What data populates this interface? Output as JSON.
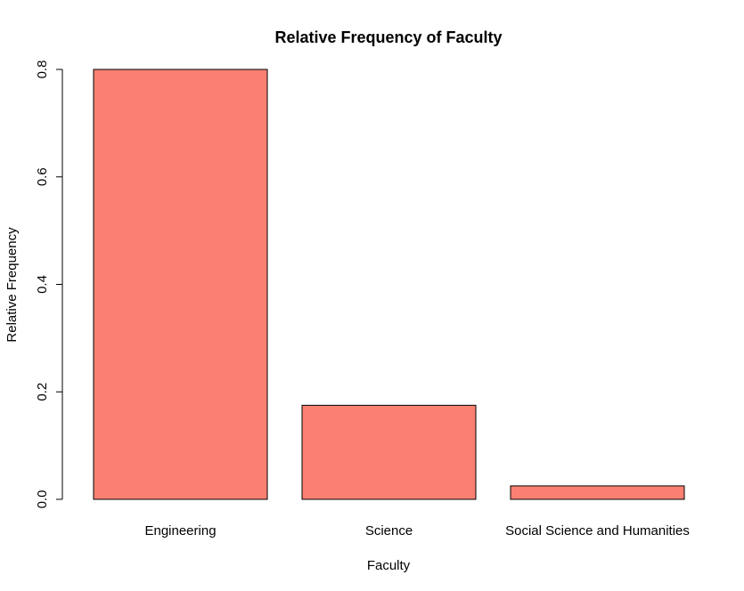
{
  "chart_data": {
    "type": "bar",
    "title": "Relative Frequency of Faculty",
    "xlabel": "Faculty",
    "ylabel": "Relative Frequency",
    "categories": [
      "Engineering",
      "Science",
      "Social Science and Humanities"
    ],
    "values": [
      0.8,
      0.175,
      0.025
    ],
    "ylim": [
      0,
      0.8
    ],
    "yticks": [
      "0.0",
      "0.2",
      "0.4",
      "0.6",
      "0.8"
    ],
    "bar_color": "#FA8072",
    "bar_border_color": "#000000",
    "grid": false,
    "legend": "none"
  }
}
